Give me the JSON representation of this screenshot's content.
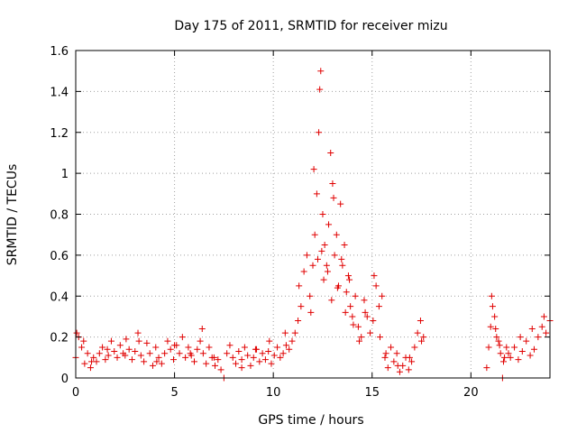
{
  "chart_data": {
    "type": "scatter",
    "title": "Day 175 of 2011, SRMTID for receiver mizu",
    "xlabel": "GPS time / hours",
    "ylabel": "SRMTID / TECUs",
    "xlim": [
      0,
      24
    ],
    "ylim": [
      0,
      1.6
    ],
    "xticks": [
      0,
      5,
      10,
      15,
      20
    ],
    "xtick_labels": [
      "0",
      "5",
      "10",
      "15",
      "20"
    ],
    "yticks": [
      0,
      0.2,
      0.4,
      0.6,
      0.8,
      1.0,
      1.2,
      1.4,
      1.6
    ],
    "ytick_labels": [
      "0",
      "0.2",
      "0.4",
      "0.6",
      "0.8",
      "1",
      "1.2",
      "1.4",
      "1.6"
    ],
    "grid": true,
    "marker": "plus",
    "color": "#e00000",
    "series": [
      {
        "name": "SRMTID",
        "x": [
          0.0,
          0.15,
          0.3,
          0.45,
          0.6,
          0.75,
          0.9,
          1.05,
          1.2,
          1.35,
          1.5,
          1.65,
          1.8,
          1.95,
          2.1,
          2.25,
          2.4,
          2.55,
          2.7,
          2.85,
          3.0,
          3.15,
          3.3,
          3.45,
          3.6,
          3.75,
          3.9,
          4.05,
          4.2,
          4.35,
          4.5,
          4.65,
          4.8,
          4.95,
          5.1,
          5.25,
          5.4,
          5.55,
          5.7,
          5.85,
          6.0,
          6.15,
          6.3,
          6.45,
          6.6,
          6.75,
          6.9,
          7.05,
          7.2,
          7.35,
          7.5,
          7.65,
          7.8,
          7.95,
          8.1,
          8.25,
          8.4,
          8.55,
          8.7,
          8.85,
          9.0,
          9.15,
          9.3,
          9.45,
          9.6,
          9.75,
          9.9,
          10.05,
          10.2,
          10.35,
          10.5,
          10.65,
          10.8,
          10.95,
          11.1,
          11.25,
          11.4,
          11.55,
          11.7,
          11.85,
          12.0,
          12.1,
          12.2,
          12.3,
          12.4,
          12.5,
          12.6,
          12.7,
          12.8,
          12.9,
          13.0,
          13.1,
          13.2,
          13.3,
          13.4,
          13.5,
          13.6,
          13.7,
          13.8,
          13.9,
          14.0,
          14.15,
          14.3,
          14.45,
          14.6,
          14.75,
          14.9,
          15.05,
          15.2,
          15.35,
          15.5,
          15.65,
          15.8,
          15.95,
          16.1,
          16.25,
          16.4,
          16.55,
          16.7,
          16.85,
          17.0,
          17.15,
          17.3,
          17.45,
          17.6,
          20.8,
          20.9,
          21.0,
          21.1,
          21.2,
          21.3,
          21.4,
          21.5,
          21.6,
          21.7,
          21.8,
          21.9,
          22.0,
          22.2,
          22.4,
          22.6,
          22.8,
          23.0,
          23.2,
          23.4,
          23.6,
          23.8,
          24.0,
          0.05,
          0.4,
          0.8,
          1.6,
          2.5,
          3.2,
          4.1,
          5.0,
          5.8,
          6.4,
          7.0,
          8.4,
          9.1,
          9.8,
          10.6,
          11.3,
          11.9,
          12.05,
          12.25,
          12.35,
          12.45,
          12.55,
          12.75,
          12.95,
          13.05,
          13.25,
          13.45,
          13.65,
          13.85,
          14.05,
          14.35,
          14.65,
          15.1,
          15.4,
          15.7,
          16.3,
          16.9,
          17.5,
          21.05,
          21.25,
          21.45,
          21.65,
          22.5,
          23.1,
          23.7
        ],
        "y": [
          0.1,
          0.2,
          0.15,
          0.07,
          0.12,
          0.05,
          0.1,
          0.08,
          0.12,
          0.15,
          0.09,
          0.11,
          0.18,
          0.13,
          0.1,
          0.16,
          0.12,
          0.19,
          0.14,
          0.09,
          0.13,
          0.22,
          0.11,
          0.08,
          0.17,
          0.12,
          0.06,
          0.15,
          0.1,
          0.07,
          0.12,
          0.18,
          0.14,
          0.09,
          0.16,
          0.12,
          0.2,
          0.1,
          0.15,
          0.11,
          0.08,
          0.14,
          0.18,
          0.12,
          0.07,
          0.15,
          0.1,
          0.06,
          0.09,
          0.04,
          0.0,
          0.12,
          0.16,
          0.1,
          0.07,
          0.13,
          0.09,
          0.15,
          0.11,
          0.06,
          0.1,
          0.14,
          0.08,
          0.12,
          0.09,
          0.13,
          0.07,
          0.11,
          0.15,
          0.1,
          0.12,
          0.16,
          0.14,
          0.18,
          0.22,
          0.28,
          0.35,
          0.52,
          0.6,
          0.4,
          0.55,
          0.7,
          0.9,
          1.2,
          1.5,
          0.8,
          0.65,
          0.55,
          0.75,
          1.1,
          0.95,
          0.6,
          0.7,
          0.45,
          0.85,
          0.55,
          0.65,
          0.42,
          0.5,
          0.35,
          0.3,
          0.4,
          0.25,
          0.2,
          0.38,
          0.3,
          0.22,
          0.28,
          0.45,
          0.35,
          0.4,
          0.1,
          0.05,
          0.15,
          0.08,
          0.12,
          0.03,
          0.06,
          0.1,
          0.04,
          0.08,
          0.15,
          0.22,
          0.28,
          0.2,
          0.05,
          0.15,
          0.25,
          0.35,
          0.3,
          0.2,
          0.18,
          0.12,
          0.0,
          0.1,
          0.15,
          0.12,
          0.1,
          0.15,
          0.09,
          0.13,
          0.18,
          0.11,
          0.14,
          0.2,
          0.25,
          0.22,
          0.28,
          0.22,
          0.18,
          0.08,
          0.14,
          0.11,
          0.18,
          0.08,
          0.16,
          0.12,
          0.24,
          0.1,
          0.05,
          0.14,
          0.18,
          0.22,
          0.45,
          0.32,
          1.02,
          0.58,
          1.41,
          0.62,
          0.48,
          0.52,
          0.38,
          0.88,
          0.44,
          0.58,
          0.32,
          0.48,
          0.26,
          0.18,
          0.32,
          0.5,
          0.2,
          0.12,
          0.06,
          0.1,
          0.18,
          0.4,
          0.24,
          0.16,
          0.08,
          0.2,
          0.24,
          0.3
        ]
      }
    ]
  }
}
